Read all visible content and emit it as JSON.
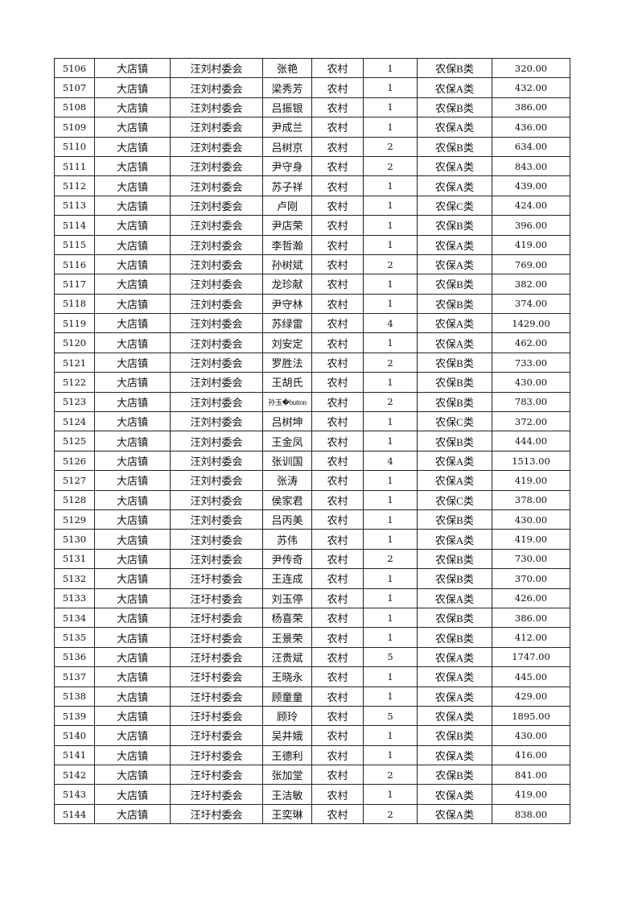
{
  "table": {
    "rows": [
      [
        "5106",
        "大店镇",
        "汪刘村委会",
        "张艳",
        "农村",
        "1",
        "农保B类",
        "320.00"
      ],
      [
        "5107",
        "大店镇",
        "汪刘村委会",
        "梁秀芳",
        "农村",
        "1",
        "农保A类",
        "432.00"
      ],
      [
        "5108",
        "大店镇",
        "汪刘村委会",
        "吕振银",
        "农村",
        "1",
        "农保B类",
        "386.00"
      ],
      [
        "5109",
        "大店镇",
        "汪刘村委会",
        "尹成兰",
        "农村",
        "1",
        "农保A类",
        "436.00"
      ],
      [
        "5110",
        "大店镇",
        "汪刘村委会",
        "吕树京",
        "农村",
        "2",
        "农保B类",
        "634.00"
      ],
      [
        "5111",
        "大店镇",
        "汪刘村委会",
        "尹守身",
        "农村",
        "2",
        "农保A类",
        "843.00"
      ],
      [
        "5112",
        "大店镇",
        "汪刘村委会",
        "苏子祥",
        "农村",
        "1",
        "农保A类",
        "439.00"
      ],
      [
        "5113",
        "大店镇",
        "汪刘村委会",
        "卢刚",
        "农村",
        "1",
        "农保C类",
        "424.00"
      ],
      [
        "5114",
        "大店镇",
        "汪刘村委会",
        "尹店荣",
        "农村",
        "1",
        "农保B类",
        "396.00"
      ],
      [
        "5115",
        "大店镇",
        "汪刘村委会",
        "李哲瀚",
        "农村",
        "1",
        "农保A类",
        "419.00"
      ],
      [
        "5116",
        "大店镇",
        "汪刘村委会",
        "孙树斌",
        "农村",
        "2",
        "农保A类",
        "769.00"
      ],
      [
        "5117",
        "大店镇",
        "汪刘村委会",
        "龙珍献",
        "农村",
        "1",
        "农保B类",
        "382.00"
      ],
      [
        "5118",
        "大店镇",
        "汪刘村委会",
        "尹守林",
        "农村",
        "1",
        "农保B类",
        "374.00"
      ],
      [
        "5119",
        "大店镇",
        "汪刘村委会",
        "苏绿雷",
        "农村",
        "4",
        "农保A类",
        "1429.00"
      ],
      [
        "5120",
        "大店镇",
        "汪刘村委会",
        "刘安定",
        "农村",
        "1",
        "农保A类",
        "462.00"
      ],
      [
        "5121",
        "大店镇",
        "汪刘村委会",
        "罗胜法",
        "农村",
        "2",
        "农保B类",
        "733.00"
      ],
      [
        "5122",
        "大店镇",
        "汪刘村委会",
        "王胡氏",
        "农村",
        "1",
        "农保B类",
        "430.00"
      ],
      [
        "5123",
        "大店镇",
        "汪刘村委会",
        "孙玉�button",
        "农村",
        "2",
        "农保B类",
        "783.00"
      ],
      [
        "5124",
        "大店镇",
        "汪刘村委会",
        "吕树坤",
        "农村",
        "1",
        "农保C类",
        "372.00"
      ],
      [
        "5125",
        "大店镇",
        "汪刘村委会",
        "王金凤",
        "农村",
        "1",
        "农保B类",
        "444.00"
      ],
      [
        "5126",
        "大店镇",
        "汪刘村委会",
        "张训国",
        "农村",
        "4",
        "农保A类",
        "1513.00"
      ],
      [
        "5127",
        "大店镇",
        "汪刘村委会",
        "张涛",
        "农村",
        "1",
        "农保A类",
        "419.00"
      ],
      [
        "5128",
        "大店镇",
        "汪刘村委会",
        "侯家君",
        "农村",
        "1",
        "农保C类",
        "378.00"
      ],
      [
        "5129",
        "大店镇",
        "汪刘村委会",
        "吕丙美",
        "农村",
        "1",
        "农保B类",
        "430.00"
      ],
      [
        "5130",
        "大店镇",
        "汪刘村委会",
        "苏伟",
        "农村",
        "1",
        "农保A类",
        "419.00"
      ],
      [
        "5131",
        "大店镇",
        "汪刘村委会",
        "尹传奇",
        "农村",
        "2",
        "农保B类",
        "730.00"
      ],
      [
        "5132",
        "大店镇",
        "汪圩村委会",
        "王连成",
        "农村",
        "1",
        "农保B类",
        "370.00"
      ],
      [
        "5133",
        "大店镇",
        "汪圩村委会",
        "刘玉停",
        "农村",
        "1",
        "农保A类",
        "426.00"
      ],
      [
        "5134",
        "大店镇",
        "汪圩村委会",
        "杨喜荣",
        "农村",
        "1",
        "农保B类",
        "386.00"
      ],
      [
        "5135",
        "大店镇",
        "汪圩村委会",
        "王景荣",
        "农村",
        "1",
        "农保B类",
        "412.00"
      ],
      [
        "5136",
        "大店镇",
        "汪圩村委会",
        "汪贵斌",
        "农村",
        "5",
        "农保A类",
        "1747.00"
      ],
      [
        "5137",
        "大店镇",
        "汪圩村委会",
        "王晓永",
        "农村",
        "1",
        "农保A类",
        "445.00"
      ],
      [
        "5138",
        "大店镇",
        "汪圩村委会",
        "顾童童",
        "农村",
        "1",
        "农保A类",
        "429.00"
      ],
      [
        "5139",
        "大店镇",
        "汪圩村委会",
        "顾玲",
        "农村",
        "5",
        "农保A类",
        "1895.00"
      ],
      [
        "5140",
        "大店镇",
        "汪圩村委会",
        "吴井娥",
        "农村",
        "1",
        "农保B类",
        "430.00"
      ],
      [
        "5141",
        "大店镇",
        "汪圩村委会",
        "王德利",
        "农村",
        "1",
        "农保A类",
        "416.00"
      ],
      [
        "5142",
        "大店镇",
        "汪圩村委会",
        "张加堂",
        "农村",
        "2",
        "农保B类",
        "841.00"
      ],
      [
        "5143",
        "大店镇",
        "汪圩村委会",
        "王洁敏",
        "农村",
        "1",
        "农保A类",
        "419.00"
      ],
      [
        "5144",
        "大店镇",
        "汪圩村委会",
        "王奕琳",
        "农村",
        "2",
        "农保A类",
        "838.00"
      ]
    ]
  }
}
